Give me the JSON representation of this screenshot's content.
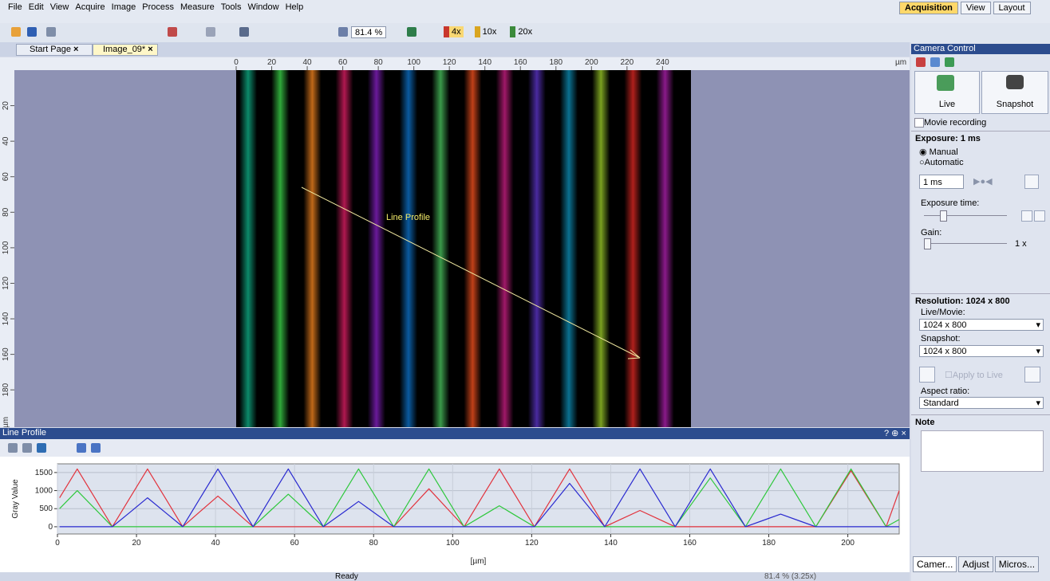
{
  "menu": [
    "File",
    "Edit",
    "View",
    "Acquire",
    "Image",
    "Process",
    "Measure",
    "Tools",
    "Window",
    "Help"
  ],
  "workspace_tabs": [
    "Acquisition",
    "View",
    "Layout"
  ],
  "toolbar": {
    "zoom": "81.4 %",
    "objectives": [
      "4x",
      "10x",
      "20x"
    ]
  },
  "doc_tabs": [
    "Start Page",
    "Image_09*"
  ],
  "image": {
    "unit": "µm",
    "xlim": [
      0,
      256
    ],
    "ylim": [
      0,
      201
    ],
    "xticks": [
      0,
      20,
      40,
      60,
      80,
      100,
      120,
      140,
      160,
      180,
      200,
      220,
      240
    ],
    "yticks": [
      20,
      40,
      60,
      80,
      100,
      120,
      140,
      160,
      180
    ],
    "annotation": "Line Profile"
  },
  "profile_panel": {
    "title": "Line Profile"
  },
  "chart_data": {
    "type": "line",
    "xlabel": "[µm]",
    "ylabel": "Gray Value",
    "xlim": [
      0,
      213
    ],
    "ylim": [
      -200,
      1740
    ],
    "xticks": [
      0,
      20,
      40,
      60,
      80,
      100,
      120,
      140,
      160,
      180,
      200
    ],
    "yticks": [
      0,
      500,
      1000,
      1500
    ],
    "grid": true,
    "x": [
      0.55,
      5,
      9.45,
      13.9,
      18.35,
      22.8,
      27.25,
      31.7,
      36.15,
      40.6,
      45.05,
      49.5,
      53.95,
      58.4,
      62.85,
      67.3,
      71.75,
      76.2,
      80.65,
      85.1,
      89.55,
      94,
      98.45,
      102.9,
      107.35,
      111.8,
      116.25,
      120.7,
      125.15,
      129.6,
      134.05,
      138.5,
      142.95,
      147.4,
      151.85,
      156.3,
      160.75,
      165.2,
      169.65,
      174.1,
      178.55,
      183,
      187.45,
      191.9,
      196.35,
      200.8,
      205.25,
      209.7,
      213
    ],
    "series": [
      {
        "color": "#e2323c",
        "values": [
          800,
          1600,
          800,
          0,
          800,
          1600,
          800,
          0,
          425,
          850,
          425,
          0,
          0,
          0,
          0,
          0,
          0,
          0,
          0,
          0,
          525,
          1050,
          525,
          0,
          800,
          1600,
          800,
          0,
          800,
          1600,
          800,
          0,
          225,
          450,
          225,
          0,
          0,
          0,
          0,
          0,
          0,
          0,
          0,
          0,
          775,
          1550,
          775,
          0,
          1000
        ]
      },
      {
        "color": "#2ec83c",
        "values": [
          500,
          1000,
          500,
          0,
          0,
          0,
          0,
          0,
          0,
          0,
          0,
          0,
          450,
          900,
          450,
          0,
          800,
          1600,
          800,
          0,
          800,
          1600,
          800,
          0,
          290,
          580,
          290,
          0,
          0,
          0,
          0,
          0,
          0,
          0,
          0,
          0,
          675,
          1350,
          675,
          0,
          800,
          1600,
          800,
          0,
          800,
          1600,
          800,
          0,
          200
        ]
      },
      {
        "color": "#2a2ad0",
        "values": [
          0,
          0,
          0,
          0,
          400,
          800,
          400,
          0,
          800,
          1600,
          800,
          0,
          800,
          1600,
          800,
          0,
          350,
          700,
          350,
          0,
          0,
          0,
          0,
          0,
          0,
          0,
          0,
          0,
          600,
          1200,
          600,
          0,
          800,
          1600,
          800,
          0,
          800,
          1600,
          800,
          0,
          175,
          350,
          175,
          0,
          0,
          0,
          0,
          0,
          0
        ]
      }
    ]
  },
  "camera": {
    "title": "Camera Control",
    "live": "Live",
    "snapshot": "Snapshot",
    "movie": "Movie recording",
    "exposure_header": "Exposure: 1 ms",
    "manual": "Manual",
    "automatic": "Automatic",
    "exposure_value": "1 ms",
    "exposure_time": "Exposure time:",
    "gain": "Gain:",
    "gain_value": "1 x",
    "resolution_header": "Resolution: 1024 x 800",
    "live_movie": "Live/Movie:",
    "live_movie_value": "1024 x 800",
    "snapshot_label": "Snapshot:",
    "snapshot_value": "1024 x 800",
    "apply": "Apply to Live",
    "aspect": "Aspect ratio:",
    "aspect_value": "Standard",
    "note": "Note"
  },
  "bottom_tabs": [
    "Camer...",
    "Adjust",
    "Micros..."
  ],
  "status": {
    "text": "Ready",
    "zoom": "81.4 % (3.25x)"
  }
}
